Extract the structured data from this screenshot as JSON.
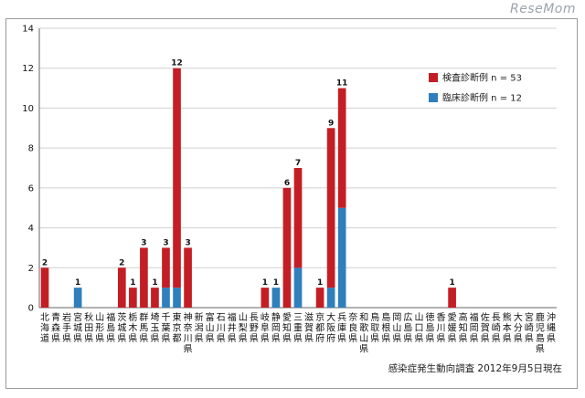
{
  "watermark": "ReseMom",
  "source_note": "感染症発生動向調査 2012年9月5日現在",
  "colors": {
    "lab": "#c41e25",
    "clinical": "#2f7fbd",
    "grid": "#d0d0d0",
    "axis": "#666666"
  },
  "chart_data": {
    "type": "bar",
    "stacked": true,
    "title": "",
    "xlabel": "",
    "ylabel": "",
    "ylim": [
      0,
      14
    ],
    "yticks": [
      0,
      2,
      4,
      6,
      8,
      10,
      12,
      14
    ],
    "grid": true,
    "legend": "top-right",
    "categories": [
      "北海道",
      "青森県",
      "岩手県",
      "宮城県",
      "秋田県",
      "山形県",
      "福島県",
      "茨城県",
      "栃木県",
      "群馬県",
      "埼玉県",
      "千葉県",
      "東京都",
      "神奈川県",
      "新潟県",
      "富山県",
      "石川県",
      "福井県",
      "山梨県",
      "長野県",
      "岐阜県",
      "静岡県",
      "愛知県",
      "三重県",
      "滋賀県",
      "京都府",
      "大阪府",
      "兵庫県",
      "奈良県",
      "和歌山県",
      "鳥取県",
      "島根県",
      "岡山県",
      "広島県",
      "山口県",
      "徳島県",
      "香川県",
      "愛媛県",
      "高知県",
      "福岡県",
      "佐賀県",
      "長崎県",
      "熊本県",
      "大分県",
      "宮崎県",
      "鹿児島県",
      "沖縄県"
    ],
    "series": [
      {
        "name": "臨床診断例 n = 12",
        "key": "clinical",
        "values": [
          0,
          0,
          0,
          1,
          0,
          0,
          0,
          0,
          0,
          0,
          0,
          1,
          1,
          0,
          0,
          0,
          0,
          0,
          0,
          0,
          0,
          1,
          0,
          2,
          0,
          0,
          1,
          5,
          0,
          0,
          0,
          0,
          0,
          0,
          0,
          0,
          0,
          0,
          0,
          0,
          0,
          0,
          0,
          0,
          0,
          0,
          0
        ]
      },
      {
        "name": "検査診断例 n = 53",
        "key": "lab",
        "values": [
          2,
          0,
          0,
          0,
          0,
          0,
          0,
          2,
          1,
          3,
          1,
          2,
          11,
          3,
          0,
          0,
          0,
          0,
          0,
          0,
          1,
          0,
          6,
          5,
          0,
          1,
          8,
          6,
          0,
          0,
          0,
          0,
          0,
          0,
          0,
          0,
          0,
          1,
          0,
          0,
          0,
          0,
          0,
          0,
          0,
          0,
          0
        ]
      }
    ],
    "totals": [
      2,
      0,
      0,
      1,
      0,
      0,
      0,
      2,
      1,
      3,
      1,
      3,
      12,
      3,
      0,
      0,
      0,
      0,
      0,
      0,
      1,
      1,
      6,
      7,
      0,
      1,
      9,
      11,
      0,
      0,
      0,
      0,
      0,
      0,
      0,
      0,
      0,
      1,
      0,
      0,
      0,
      0,
      0,
      0,
      0,
      0,
      0
    ]
  }
}
